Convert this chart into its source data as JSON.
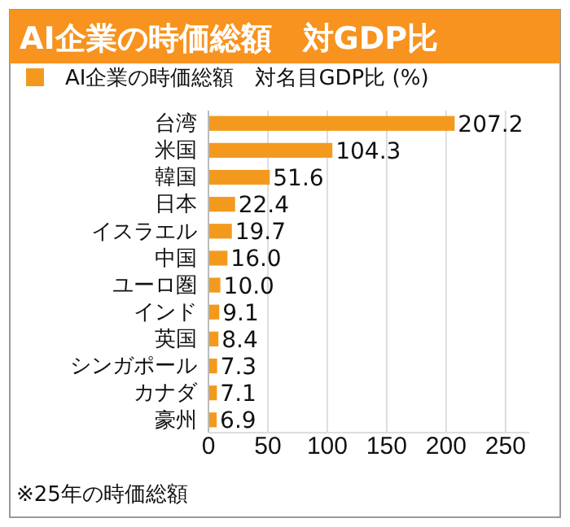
{
  "chart_data": {
    "type": "bar",
    "orientation": "horizontal",
    "title": "AI企業の時価総額　対GDP比",
    "categories": [
      "台湾",
      "米国",
      "韓国",
      "日本",
      "イスラエル",
      "中国",
      "ユーロ圏",
      "インド",
      "英国",
      "シンガポール",
      "カナダ",
      "豪州"
    ],
    "series": [
      {
        "name": "AI企業の時価総額　対名目GDP比 (%)",
        "color": "#f39a1e",
        "values": [
          207.2,
          104.3,
          51.6,
          22.4,
          19.7,
          16.0,
          10.0,
          9.1,
          8.4,
          7.3,
          7.1,
          6.9
        ]
      }
    ],
    "value_labels": [
      "207.2",
      "104.3",
      "51.6",
      "22.4",
      "19.7",
      "16.0",
      "10.0",
      "9.1",
      "8.4",
      "7.3",
      "7.1",
      "6.9"
    ],
    "xlim": [
      0,
      270
    ],
    "xticks": [
      0,
      50,
      100,
      150,
      200,
      250
    ],
    "grid": "x",
    "legend": "top",
    "annotations": [
      "※25年の時価総額"
    ]
  }
}
